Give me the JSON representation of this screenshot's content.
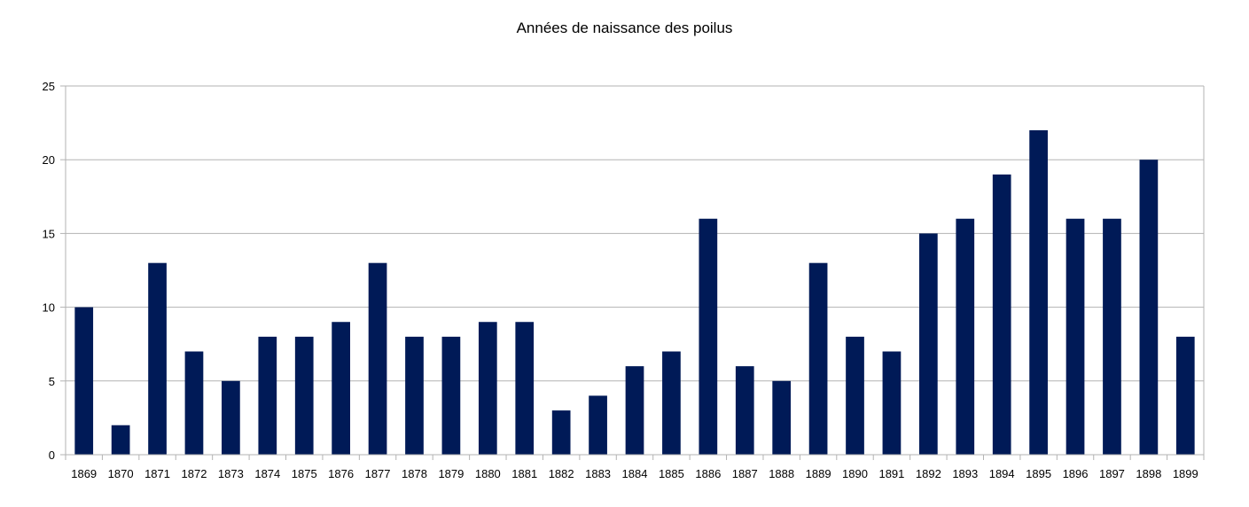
{
  "chart_data": {
    "type": "bar",
    "title": "Années de naissance des poilus",
    "xlabel": "",
    "ylabel": "",
    "categories": [
      "1869",
      "1870",
      "1871",
      "1872",
      "1873",
      "1874",
      "1875",
      "1876",
      "1877",
      "1878",
      "1879",
      "1880",
      "1881",
      "1882",
      "1883",
      "1884",
      "1885",
      "1886",
      "1887",
      "1888",
      "1889",
      "1890",
      "1891",
      "1892",
      "1893",
      "1894",
      "1895",
      "1896",
      "1897",
      "1898",
      "1899"
    ],
    "values": [
      10,
      2,
      13,
      7,
      5,
      8,
      8,
      9,
      13,
      8,
      8,
      9,
      9,
      3,
      4,
      6,
      7,
      16,
      6,
      5,
      13,
      8,
      7,
      15,
      16,
      19,
      22,
      16,
      16,
      20,
      8
    ],
    "ylim": [
      0,
      25
    ],
    "yticks": [
      "0",
      "5",
      "10",
      "15",
      "20",
      "25"
    ],
    "grid": true,
    "legend": "none",
    "colors": {
      "bar": "#001a57",
      "grid": "#b3b3b3",
      "axis": "#b3b3b3"
    }
  }
}
